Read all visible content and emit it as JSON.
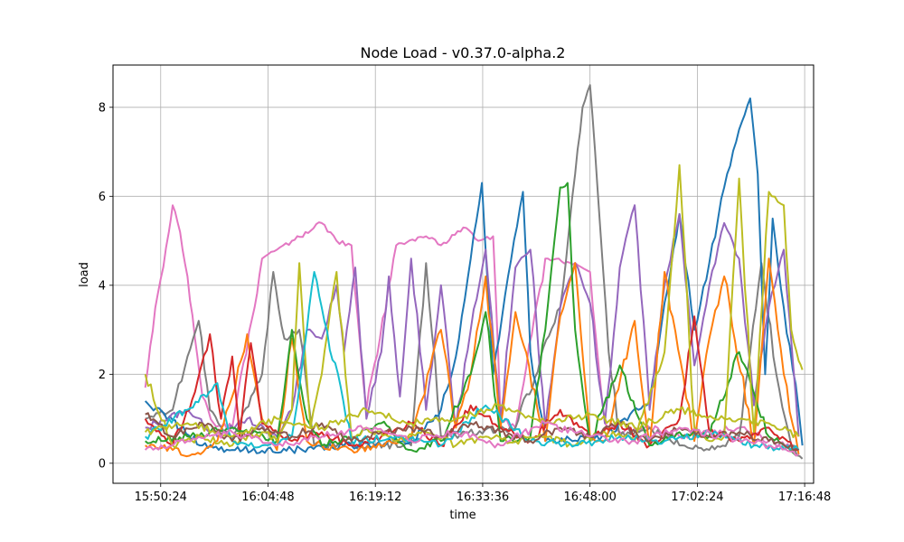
{
  "chart_data": {
    "type": "line",
    "title": "Node Load  -  v0.37.0-alpha.2",
    "xlabel": "time",
    "ylabel": "load",
    "x_ticks": [
      "15:50:24",
      "16:04:48",
      "16:19:12",
      "16:33:36",
      "16:48:00",
      "17:02:24",
      "17:16:48"
    ],
    "y_ticks": [
      0,
      2,
      4,
      6,
      8
    ],
    "xlim": [
      "15:44:00",
      "17:18:00"
    ],
    "ylim": [
      -0.45,
      8.95
    ],
    "grid": true,
    "colors": [
      "#1f77b4",
      "#ff7f0e",
      "#2ca02c",
      "#d62728",
      "#9467bd",
      "#8c564b",
      "#e377c2",
      "#7f7f7f",
      "#bcbd22",
      "#17becf"
    ],
    "series": [
      {
        "color": "#e377c2",
        "x": [
          "15:48:20",
          "15:50:00",
          "15:51:30",
          "15:52:00",
          "15:53:00",
          "15:54:00",
          "15:55:00",
          "15:56:00",
          "15:57:30",
          "16:00:00",
          "16:03:00",
          "16:04:00",
          "16:06:00",
          "16:08:00",
          "16:12:00",
          "16:14:00",
          "16:16:00",
          "16:18:00",
          "16:22:00",
          "16:26:00",
          "16:28:00",
          "16:31:00",
          "16:33:00",
          "16:35:00",
          "16:36:00",
          "16:38:00",
          "16:42:00",
          "16:46:00",
          "16:48:00",
          "16:50:00",
          "16:52:00",
          "16:56:00",
          "17:00:00",
          "17:04:00",
          "17:08:00",
          "17:12:00",
          "17:16:00"
        ],
        "y": [
          1.7,
          3.8,
          5.2,
          5.8,
          5.2,
          4.2,
          2.8,
          1.5,
          0.9,
          0.8,
          3.5,
          4.6,
          4.8,
          5.0,
          5.4,
          5.0,
          4.9,
          1.2,
          4.9,
          5.1,
          4.9,
          5.3,
          5.0,
          5.1,
          1.0,
          0.8,
          4.6,
          4.5,
          4.3,
          0.9,
          0.7,
          0.8,
          0.6,
          0.7,
          0.8,
          0.5,
          0.3
        ]
      },
      {
        "color": "#7f7f7f",
        "x": [
          "15:48:20",
          "15:52:00",
          "15:54:00",
          "15:55:30",
          "15:57:00",
          "16:00:00",
          "16:04:00",
          "16:05:30",
          "16:07:00",
          "16:09:00",
          "16:11:00",
          "16:24:00",
          "16:26:00",
          "16:28:00",
          "16:38:00",
          "16:44:00",
          "16:46:00",
          "16:47:00",
          "16:48:00",
          "16:49:00",
          "16:50:30",
          "16:52:00",
          "16:56:00",
          "17:00:00",
          "17:04:00",
          "17:08:00",
          "17:11:00",
          "17:13:00",
          "17:15:00",
          "17:16:30"
        ],
        "y": [
          1.0,
          1.2,
          2.4,
          3.2,
          1.2,
          0.5,
          2.0,
          4.3,
          2.8,
          3.0,
          0.4,
          0.4,
          4.5,
          0.6,
          0.8,
          3.5,
          6.5,
          8.0,
          8.5,
          6.2,
          2.5,
          0.6,
          0.8,
          0.4,
          0.3,
          0.6,
          4.5,
          2.0,
          0.4,
          0.1
        ]
      },
      {
        "color": "#1f77b4",
        "x": [
          "15:48:20",
          "15:56:00",
          "16:00:00",
          "16:08:00",
          "16:16:00",
          "16:24:00",
          "16:28:00",
          "16:30:00",
          "16:32:00",
          "16:33:30",
          "16:35:00",
          "16:37:00",
          "16:39:00",
          "16:40:00",
          "16:42:00",
          "16:50:00",
          "16:56:00",
          "16:58:00",
          "17:00:00",
          "17:02:00",
          "17:04:00",
          "17:06:00",
          "17:08:00",
          "17:09:30",
          "17:10:30",
          "17:11:30",
          "17:12:30",
          "17:14:00",
          "17:16:00",
          "17:16:30"
        ],
        "y": [
          1.4,
          0.4,
          0.3,
          0.3,
          0.4,
          0.5,
          1.2,
          2.4,
          4.6,
          6.3,
          2.0,
          4.2,
          6.1,
          2.5,
          0.5,
          0.6,
          1.4,
          3.6,
          5.6,
          3.0,
          4.5,
          6.2,
          7.5,
          8.2,
          6.5,
          2.0,
          5.5,
          3.5,
          1.2,
          0.4
        ]
      },
      {
        "color": "#9467bd",
        "x": [
          "15:48:20",
          "15:54:00",
          "15:58:00",
          "16:02:00",
          "16:06:00",
          "16:08:00",
          "16:10:00",
          "16:12:00",
          "16:14:00",
          "16:15:00",
          "16:16:30",
          "16:18:00",
          "16:20:00",
          "16:21:00",
          "16:22:30",
          "16:24:00",
          "16:26:00",
          "16:28:00",
          "16:30:00",
          "16:32:00",
          "16:34:00",
          "16:36:00",
          "16:38:00",
          "16:40:00",
          "16:42:00",
          "16:44:00",
          "16:46:00",
          "16:48:00",
          "16:50:00",
          "16:52:00",
          "16:54:00",
          "16:56:00",
          "16:58:00",
          "17:00:00",
          "17:02:00",
          "17:04:00",
          "17:06:00",
          "17:08:00",
          "17:10:00",
          "17:12:00",
          "17:14:00",
          "17:16:00"
        ],
        "y": [
          0.8,
          1.2,
          0.6,
          1.0,
          0.6,
          1.2,
          3.0,
          2.8,
          4.0,
          2.5,
          4.4,
          1.0,
          2.5,
          4.2,
          1.5,
          4.6,
          1.2,
          4.0,
          0.8,
          3.0,
          4.8,
          1.0,
          4.4,
          4.8,
          0.8,
          3.5,
          4.5,
          3.6,
          0.9,
          4.4,
          5.8,
          1.2,
          4.0,
          5.6,
          2.2,
          4.0,
          5.4,
          4.6,
          1.3,
          3.5,
          4.8,
          0.6
        ]
      },
      {
        "color": "#ff7f0e",
        "x": [
          "15:48:20",
          "15:52:00",
          "15:55:00",
          "15:58:00",
          "16:00:00",
          "16:02:00",
          "16:04:00",
          "16:06:00",
          "16:08:00",
          "16:10:00",
          "16:12:00",
          "16:16:00",
          "16:20:00",
          "16:24:00",
          "16:28:00",
          "16:30:00",
          "16:32:00",
          "16:34:00",
          "16:36:00",
          "16:38:00",
          "16:42:00",
          "16:44:00",
          "16:46:00",
          "16:48:00",
          "16:50:00",
          "16:54:00",
          "16:56:00",
          "16:58:00",
          "17:02:00",
          "17:04:00",
          "17:06:00",
          "17:10:00",
          "17:12:00",
          "17:14:00",
          "17:16:00"
        ],
        "y": [
          0.4,
          0.3,
          0.2,
          0.5,
          1.5,
          2.9,
          1.0,
          0.3,
          2.8,
          0.5,
          0.4,
          0.3,
          0.4,
          0.6,
          3.0,
          0.8,
          2.0,
          4.2,
          0.8,
          3.4,
          0.5,
          3.3,
          4.5,
          0.6,
          0.5,
          3.2,
          0.4,
          4.3,
          0.5,
          2.8,
          4.2,
          0.4,
          4.6,
          2.0,
          0.2
        ]
      },
      {
        "color": "#d62728",
        "x": [
          "15:48:20",
          "15:52:00",
          "15:55:00",
          "15:57:00",
          "15:58:30",
          "16:00:00",
          "16:01:00",
          "16:02:30",
          "16:04:00",
          "16:08:00",
          "16:12:00",
          "16:16:00",
          "16:20:00",
          "16:24:00",
          "16:28:00",
          "16:32:00",
          "16:36:00",
          "16:40:00",
          "16:44:00",
          "16:48:00",
          "16:52:00",
          "16:56:00",
          "17:00:00",
          "17:02:00",
          "17:04:00",
          "17:08:00",
          "17:12:00",
          "17:16:00"
        ],
        "y": [
          1.0,
          0.4,
          1.6,
          2.9,
          1.0,
          2.4,
          0.6,
          2.7,
          0.9,
          0.5,
          0.7,
          0.4,
          0.6,
          0.9,
          0.4,
          1.3,
          0.8,
          0.5,
          1.2,
          0.6,
          0.9,
          0.4,
          1.0,
          3.3,
          0.7,
          0.5,
          0.8,
          0.3
        ]
      },
      {
        "color": "#2ca02c",
        "x": [
          "15:48:20",
          "15:54:00",
          "16:00:00",
          "16:06:00",
          "16:08:00",
          "16:10:00",
          "16:12:00",
          "16:16:00",
          "16:20:00",
          "16:24:00",
          "16:28:00",
          "16:32:00",
          "16:34:00",
          "16:36:00",
          "16:40:00",
          "16:42:00",
          "16:44:00",
          "16:45:00",
          "16:46:00",
          "16:48:00",
          "16:52:00",
          "16:56:00",
          "17:00:00",
          "17:04:00",
          "17:08:00",
          "17:12:00",
          "17:16:00"
        ],
        "y": [
          0.5,
          0.6,
          0.8,
          0.5,
          3.0,
          1.0,
          0.4,
          0.6,
          0.9,
          0.3,
          0.5,
          2.0,
          3.4,
          0.5,
          0.6,
          3.0,
          6.2,
          6.3,
          3.0,
          0.5,
          2.2,
          0.4,
          0.7,
          0.6,
          2.5,
          0.6,
          0.2
        ]
      },
      {
        "color": "#bcbd22",
        "x": [
          "15:48:20",
          "15:52:00",
          "15:56:00",
          "16:00:00",
          "16:04:00",
          "16:06:00",
          "16:08:00",
          "16:09:00",
          "16:10:30",
          "16:12:00",
          "16:14:00",
          "16:16:00",
          "16:18:00",
          "16:22:00",
          "16:26:00",
          "16:30:00",
          "16:34:00",
          "16:38:00",
          "16:42:00",
          "16:46:00",
          "16:50:00",
          "16:54:00",
          "16:58:00",
          "17:00:00",
          "17:02:00",
          "17:04:00",
          "17:06:00",
          "17:08:00",
          "17:10:00",
          "17:12:00",
          "17:14:00",
          "17:15:00",
          "17:16:00",
          "17:16:30"
        ],
        "y": [
          2.0,
          0.4,
          0.6,
          0.4,
          0.7,
          0.5,
          1.2,
          4.5,
          0.8,
          2.0,
          4.3,
          0.6,
          0.8,
          0.5,
          0.7,
          0.4,
          0.6,
          0.5,
          0.6,
          0.4,
          0.7,
          0.5,
          2.5,
          6.7,
          0.8,
          0.5,
          0.6,
          6.4,
          0.7,
          6.1,
          5.8,
          3.0,
          2.3,
          2.1
        ]
      },
      {
        "color": "#17becf",
        "x": [
          "15:48:20",
          "15:54:00",
          "15:58:00",
          "16:00:00",
          "16:04:00",
          "16:08:00",
          "16:10:00",
          "16:11:00",
          "16:12:00",
          "16:16:00",
          "16:22:00",
          "16:28:00",
          "16:34:00",
          "16:40:00",
          "16:46:00",
          "16:52:00",
          "16:58:00",
          "17:04:00",
          "17:10:00",
          "17:16:00"
        ],
        "y": [
          0.6,
          1.2,
          1.8,
          0.5,
          0.4,
          0.6,
          3.0,
          4.3,
          3.5,
          0.5,
          0.6,
          0.4,
          1.3,
          0.5,
          0.4,
          0.6,
          0.5,
          0.7,
          0.4,
          0.3
        ]
      },
      {
        "color": "#8c564b",
        "x": [
          "15:48:20",
          "15:52:00",
          "15:56:00",
          "16:00:00",
          "16:04:00",
          "16:08:00",
          "16:12:00",
          "16:16:00",
          "16:20:00",
          "16:24:00",
          "16:28:00",
          "16:32:00",
          "16:36:00",
          "16:40:00",
          "16:44:00",
          "16:48:00",
          "16:52:00",
          "16:56:00",
          "17:00:00",
          "17:04:00",
          "17:08:00",
          "17:12:00",
          "17:16:00"
        ],
        "y": [
          1.1,
          0.6,
          0.9,
          0.5,
          0.8,
          0.6,
          0.9,
          0.5,
          0.7,
          0.8,
          0.6,
          0.9,
          0.7,
          0.5,
          0.8,
          0.6,
          0.9,
          0.5,
          0.8,
          0.6,
          0.7,
          0.5,
          0.3
        ]
      },
      {
        "color": "#bcbd22",
        "x": [
          "15:48:20",
          "15:54:00",
          "16:00:00",
          "16:06:00",
          "16:12:00",
          "16:18:00",
          "16:24:00",
          "16:30:00",
          "16:36:00",
          "16:42:00",
          "16:48:00",
          "16:54:00",
          "17:00:00",
          "17:06:00",
          "17:12:00",
          "17:16:00"
        ],
        "y": [
          0.7,
          0.9,
          0.6,
          1.0,
          0.8,
          1.2,
          0.9,
          1.0,
          1.3,
          0.9,
          1.1,
          0.8,
          1.2,
          1.0,
          0.9,
          0.6
        ]
      },
      {
        "color": "#e377c2",
        "x": [
          "15:48:20",
          "15:54:00",
          "16:00:00",
          "16:06:00",
          "16:12:00",
          "16:18:00",
          "16:24:00",
          "16:30:00",
          "16:36:00",
          "16:42:00",
          "16:48:00",
          "16:54:00",
          "17:00:00",
          "17:06:00",
          "17:12:00",
          "17:16:00"
        ],
        "y": [
          0.3,
          0.5,
          0.7,
          0.4,
          0.6,
          0.8,
          0.5,
          0.7,
          0.4,
          0.9,
          0.6,
          0.5,
          0.8,
          0.6,
          0.4,
          0.2
        ]
      }
    ]
  }
}
